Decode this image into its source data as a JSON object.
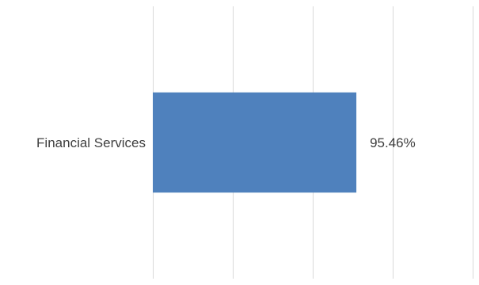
{
  "chart_data": {
    "type": "bar",
    "orientation": "horizontal",
    "categories": [
      "Financial Services"
    ],
    "values": [
      95.46
    ],
    "value_labels": [
      "95.46%"
    ],
    "xlim": [
      0,
      150
    ],
    "grid": true,
    "title": "",
    "xlabel": "",
    "ylabel": "",
    "colors": {
      "bar": "#4f81bd",
      "grid": "#d9d9d9",
      "text": "#3f3f3f"
    }
  }
}
